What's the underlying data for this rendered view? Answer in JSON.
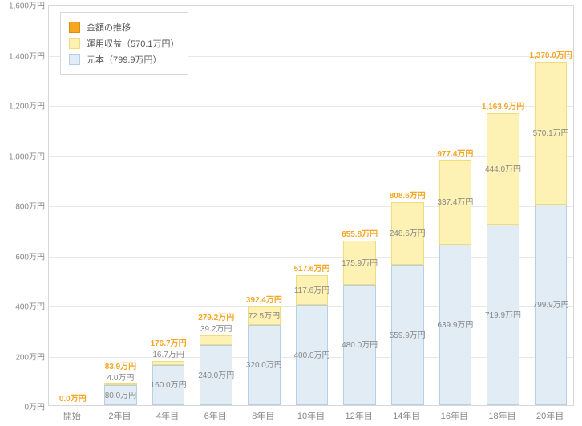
{
  "chart": {
    "type": "stacked-bar",
    "y_axis": {
      "min": 0,
      "max": 1600,
      "step": 200,
      "unit_suffix": "万円",
      "label_color": "#888888",
      "label_fontsize": 10,
      "grid_color": "#e8e8e8",
      "axis_color": "#d8d8d8"
    },
    "x_axis": {
      "categories": [
        "開始",
        "2年目",
        "4年目",
        "6年目",
        "8年目",
        "10年目",
        "12年目",
        "14年目",
        "16年目",
        "18年目",
        "20年目"
      ],
      "label_color": "#888888",
      "label_fontsize": 11
    },
    "bars": [
      {
        "cat": "開始",
        "principal": 0.0,
        "ret": 0.0,
        "total": 0.0,
        "p_label": "",
        "r_label": "",
        "t_label": "0.0万円"
      },
      {
        "cat": "2年目",
        "principal": 80.0,
        "ret": 4.0,
        "total": 83.9,
        "p_label": "80.0万円",
        "r_label": "4.0万円",
        "t_label": "83.9万円"
      },
      {
        "cat": "4年目",
        "principal": 160.0,
        "ret": 16.7,
        "total": 176.7,
        "p_label": "160.0万円",
        "r_label": "16.7万円",
        "t_label": "176.7万円"
      },
      {
        "cat": "6年目",
        "principal": 240.0,
        "ret": 39.2,
        "total": 279.2,
        "p_label": "240.0万円",
        "r_label": "39.2万円",
        "t_label": "279.2万円"
      },
      {
        "cat": "8年目",
        "principal": 320.0,
        "ret": 72.5,
        "total": 392.4,
        "p_label": "320.0万円",
        "r_label": "72.5万円",
        "t_label": "392.4万円"
      },
      {
        "cat": "10年目",
        "principal": 400.0,
        "ret": 117.6,
        "total": 517.6,
        "p_label": "400.0万円",
        "r_label": "117.6万円",
        "t_label": "517.6万円"
      },
      {
        "cat": "12年目",
        "principal": 480.0,
        "ret": 175.9,
        "total": 655.8,
        "p_label": "480.0万円",
        "r_label": "175.9万円",
        "t_label": "655.8万円"
      },
      {
        "cat": "14年目",
        "principal": 559.9,
        "ret": 248.6,
        "total": 808.6,
        "p_label": "559.9万円",
        "r_label": "248.6万円",
        "t_label": "808.6万円"
      },
      {
        "cat": "16年目",
        "principal": 639.9,
        "ret": 337.4,
        "total": 977.4,
        "p_label": "639.9万円",
        "r_label": "337.4万円",
        "t_label": "977.4万円"
      },
      {
        "cat": "18年目",
        "principal": 719.9,
        "ret": 444.0,
        "total": 1163.9,
        "p_label": "719.9万円",
        "r_label": "444.0万円",
        "t_label": "1,163.9万円"
      },
      {
        "cat": "20年目",
        "principal": 799.9,
        "ret": 570.1,
        "total": 1370.0,
        "p_label": "799.9万円",
        "r_label": "570.1万円",
        "t_label": "1,370.0万円"
      }
    ],
    "colors": {
      "principal_fill": "#e1ecf5",
      "principal_border": "#b5d0e6",
      "return_fill": "#fdf1b4",
      "return_border": "#f0dd7a",
      "trend_fill": "#f5a623",
      "trend_border": "#e08e00",
      "total_label": "#f5a623",
      "value_label": "#888888",
      "background": "#ffffff"
    },
    "bar_rel_width": 0.68,
    "legend": {
      "items": [
        {
          "key": "trend",
          "label": "金額の推移",
          "fill": "#f5a623",
          "border": "#e08e00"
        },
        {
          "key": "return",
          "label": "運用収益（570.1万円）",
          "fill": "#fdf1b4",
          "border": "#f0dd7a"
        },
        {
          "key": "principal",
          "label": "元本（799.9万円）",
          "fill": "#e1ecf5",
          "border": "#b5d0e6"
        }
      ],
      "border_color": "#d8d8d8",
      "background": "#ffffff",
      "fontsize": 11
    }
  }
}
